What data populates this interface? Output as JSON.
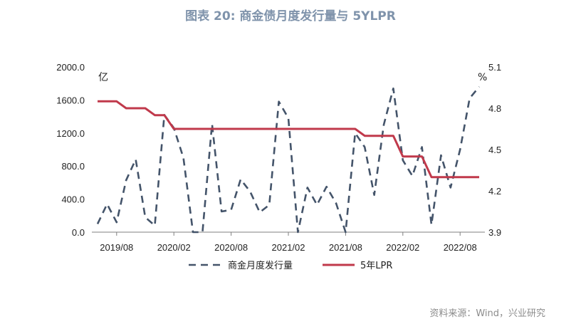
{
  "title": "图表 20: 商金债月度发行量与 5YLPR",
  "source": "资料来源：Wind，兴业研究",
  "chart_data": {
    "type": "line",
    "left_axis": {
      "unit": "亿",
      "min": 0,
      "max": 2000,
      "ticks": [
        "0.0",
        "400.0",
        "800.0",
        "1200.0",
        "1600.0",
        "2000.0"
      ]
    },
    "right_axis": {
      "unit": "%",
      "min": 3.9,
      "max": 5.1,
      "ticks": [
        "3.9",
        "4.2",
        "4.5",
        "4.8",
        "5.1"
      ]
    },
    "x_ticks": [
      "2019/08",
      "2020/02",
      "2020/08",
      "2021/02",
      "2021/08",
      "2022/02",
      "2022/08"
    ],
    "x_tick_index": [
      2,
      8,
      14,
      20,
      26,
      32,
      38
    ],
    "series": [
      {
        "name": "商金月度发行量",
        "axis": "left",
        "style": "dashed",
        "color": "#44546a",
        "values": [
          100,
          340,
          120,
          630,
          880,
          180,
          80,
          1420,
          1260,
          900,
          0,
          0,
          1310,
          250,
          270,
          640,
          490,
          240,
          330,
          1580,
          1380,
          0,
          540,
          330,
          550,
          350,
          0,
          1200,
          1030,
          450,
          1300,
          1740,
          870,
          680,
          1030,
          90,
          930,
          540,
          1000,
          1620,
          1760
        ]
      },
      {
        "name": "5年LPR",
        "axis": "right",
        "style": "solid",
        "color": "#c0394b",
        "values": [
          4.85,
          4.85,
          4.85,
          4.8,
          4.8,
          4.8,
          4.75,
          4.75,
          4.65,
          4.65,
          4.65,
          4.65,
          4.65,
          4.65,
          4.65,
          4.65,
          4.65,
          4.65,
          4.65,
          4.65,
          4.65,
          4.65,
          4.65,
          4.65,
          4.65,
          4.65,
          4.65,
          4.65,
          4.6,
          4.6,
          4.6,
          4.6,
          4.45,
          4.45,
          4.45,
          4.3,
          4.3,
          4.3,
          4.3,
          4.3,
          4.3
        ]
      }
    ]
  }
}
